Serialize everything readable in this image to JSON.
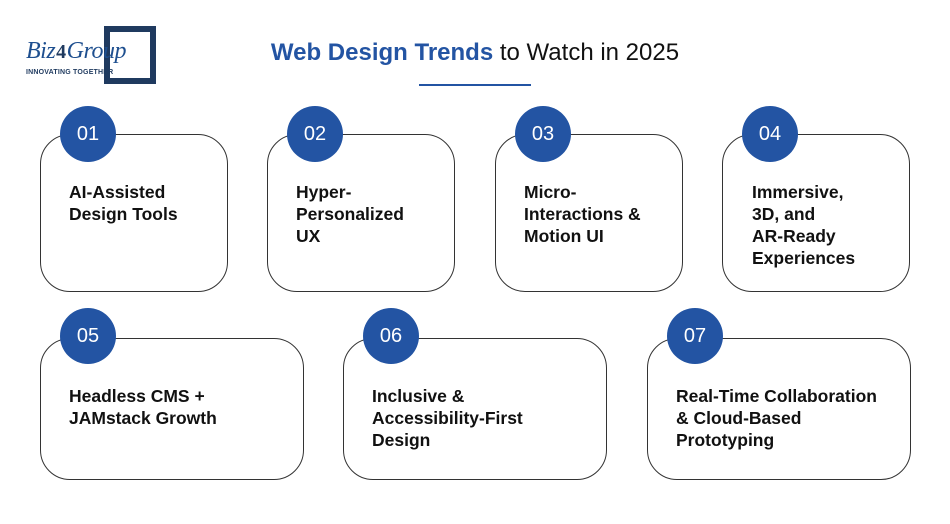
{
  "logo": {
    "name_prefix": "Biz",
    "name_digit": "4",
    "name_suffix": "Group",
    "tagline": "INNOVATING TOGETHER"
  },
  "title": {
    "accent": "Web Design Trends",
    "rest": " to Watch in 2025"
  },
  "colors": {
    "accent": "#2354a3",
    "logo_dark": "#1f3a5f",
    "card_border": "#333333"
  },
  "trends": [
    {
      "number": "01",
      "text": "AI-Assisted\nDesign Tools"
    },
    {
      "number": "02",
      "text": "Hyper-\nPersonalized\nUX"
    },
    {
      "number": "03",
      "text": "Micro-\nInteractions &\nMotion UI"
    },
    {
      "number": "04",
      "text": "Immersive,\n3D, and\nAR-Ready\nExperiences"
    },
    {
      "number": "05",
      "text": "Headless CMS +\nJAMstack Growth"
    },
    {
      "number": "06",
      "text": "Inclusive &\nAccessibility-First\nDesign"
    },
    {
      "number": "07",
      "text": "Real-Time Collaboration\n& Cloud-Based\nPrototyping"
    }
  ]
}
